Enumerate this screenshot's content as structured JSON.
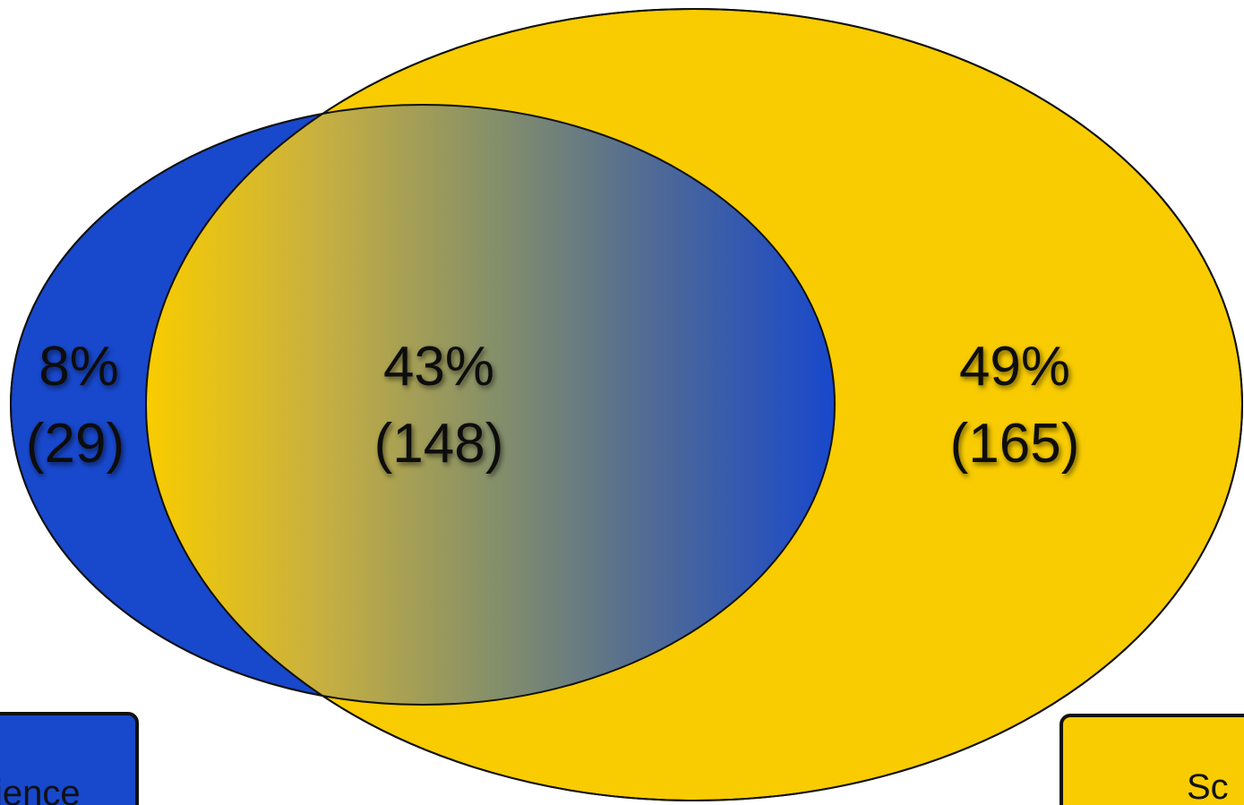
{
  "colors": {
    "set_a": "#1848cc",
    "set_b": "#f8cc00",
    "outline": "#111111",
    "text": "#111111"
  },
  "regions": {
    "a_only": {
      "percent": "8%",
      "count": "(29)"
    },
    "overlap": {
      "percent": "43%",
      "count": "(148)"
    },
    "b_only": {
      "percent": "49%",
      "count": "(165)"
    }
  },
  "legend": {
    "a_label": "ience",
    "b_label": "Sc"
  }
}
